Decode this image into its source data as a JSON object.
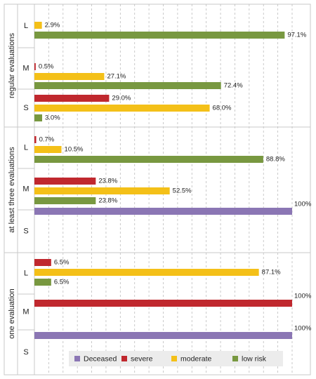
{
  "chart_data": {
    "type": "bar",
    "orientation": "horizontal",
    "xlim": [
      0,
      100
    ],
    "grid": true,
    "legend_position": "bottom",
    "series": [
      {
        "name": "Deceased",
        "color": "#8B76B4"
      },
      {
        "name": "severe",
        "color": "#C0282E"
      },
      {
        "name": "moderate",
        "color": "#F4C018"
      },
      {
        "name": "low risk",
        "color": "#789840"
      }
    ],
    "groups": [
      {
        "label": "regular evaluations",
        "categories": [
          {
            "label": "L",
            "bars": [
              {
                "series": "moderate",
                "value": 2.9,
                "label": "2.9%"
              },
              {
                "series": "low risk",
                "value": 97.1,
                "label": "97.1%"
              }
            ]
          },
          {
            "label": "M",
            "bars": [
              {
                "series": "severe",
                "value": 0.5,
                "label": "0.5%"
              },
              {
                "series": "moderate",
                "value": 27.1,
                "label": "27.1%"
              },
              {
                "series": "low risk",
                "value": 72.4,
                "label": "72.4%"
              }
            ]
          },
          {
            "label": "S",
            "bars": [
              {
                "series": "severe",
                "value": 29.0,
                "label": "29.0%"
              },
              {
                "series": "moderate",
                "value": 68.0,
                "label": "68.0%"
              },
              {
                "series": "low risk",
                "value": 3.0,
                "label": "3.0%"
              }
            ]
          }
        ]
      },
      {
        "label": "at least three evaluations",
        "categories": [
          {
            "label": "L",
            "bars": [
              {
                "series": "severe",
                "value": 0.7,
                "label": "0.7%"
              },
              {
                "series": "moderate",
                "value": 10.5,
                "label": "10.5%"
              },
              {
                "series": "low risk",
                "value": 88.8,
                "label": "88.8%"
              }
            ]
          },
          {
            "label": "M",
            "bars": [
              {
                "series": "severe",
                "value": 23.8,
                "label": "23.8%"
              },
              {
                "series": "moderate",
                "value": 52.5,
                "label": "52.5%"
              },
              {
                "series": "low risk",
                "value": 23.8,
                "label": "23.8%"
              }
            ]
          },
          {
            "label": "S",
            "bars": [
              {
                "series": "Deceased",
                "value": 100,
                "label": "100%"
              }
            ]
          }
        ]
      },
      {
        "label": "one evaluation",
        "categories": [
          {
            "label": "L",
            "bars": [
              {
                "series": "severe",
                "value": 6.5,
                "label": "6.5%"
              },
              {
                "series": "moderate",
                "value": 87.1,
                "label": "87.1%"
              },
              {
                "series": "low risk",
                "value": 6.5,
                "label": "6.5%"
              }
            ]
          },
          {
            "label": "M",
            "bars": [
              {
                "series": "severe",
                "value": 100,
                "label": "100%"
              }
            ]
          },
          {
            "label": "S",
            "bars": [
              {
                "series": "Deceased",
                "value": 100,
                "label": "100%"
              }
            ]
          }
        ]
      }
    ]
  }
}
